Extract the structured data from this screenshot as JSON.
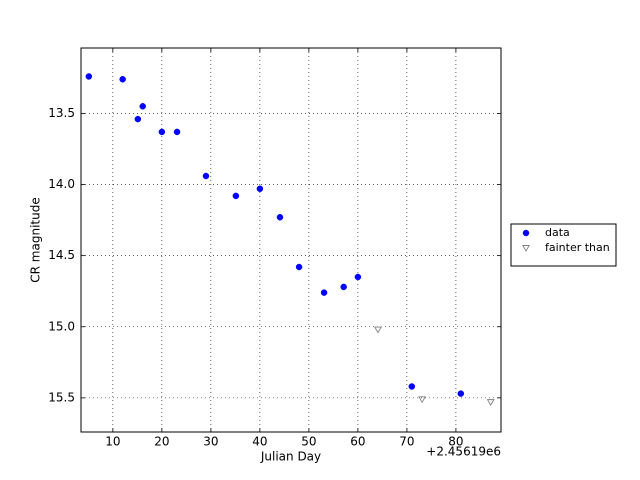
{
  "chart_data": {
    "type": "scatter",
    "xlabel": "Julian Day",
    "ylabel": "CR magnitude",
    "x_offset_label": "+2.45619e6",
    "xlim": [
      3.5,
      89.2
    ],
    "ylim": [
      13.04,
      15.74
    ],
    "y_inverted": true,
    "grid": true,
    "legend": "outside-right",
    "xticks": [
      10,
      20,
      30,
      40,
      50,
      60,
      70,
      80
    ],
    "yticks": [
      13.5,
      {
        "value": 14,
        "label": "14.0"
      },
      14.5,
      {
        "value": 15,
        "label": "15.0"
      },
      15.5
    ],
    "series": [
      {
        "name": "data",
        "color": "#0000ff",
        "marker": "circle",
        "x": [
          5.1,
          12.0,
          15.1,
          16.1,
          20.0,
          23.1,
          29.0,
          35.1,
          40.0,
          44.1,
          48.0,
          53.1,
          57.1,
          60.0,
          71.0,
          81.0
        ],
        "values": [
          13.24,
          13.26,
          13.54,
          13.45,
          13.63,
          13.63,
          13.94,
          14.08,
          14.03,
          14.23,
          14.58,
          14.76,
          14.72,
          14.65,
          15.42,
          15.47
        ]
      },
      {
        "name": "fainter than",
        "color": "#808080",
        "marker": "triangle-down",
        "x": [
          64.1,
          73.1,
          87.1
        ],
        "values": [
          15.02,
          15.51,
          15.53
        ]
      }
    ]
  }
}
